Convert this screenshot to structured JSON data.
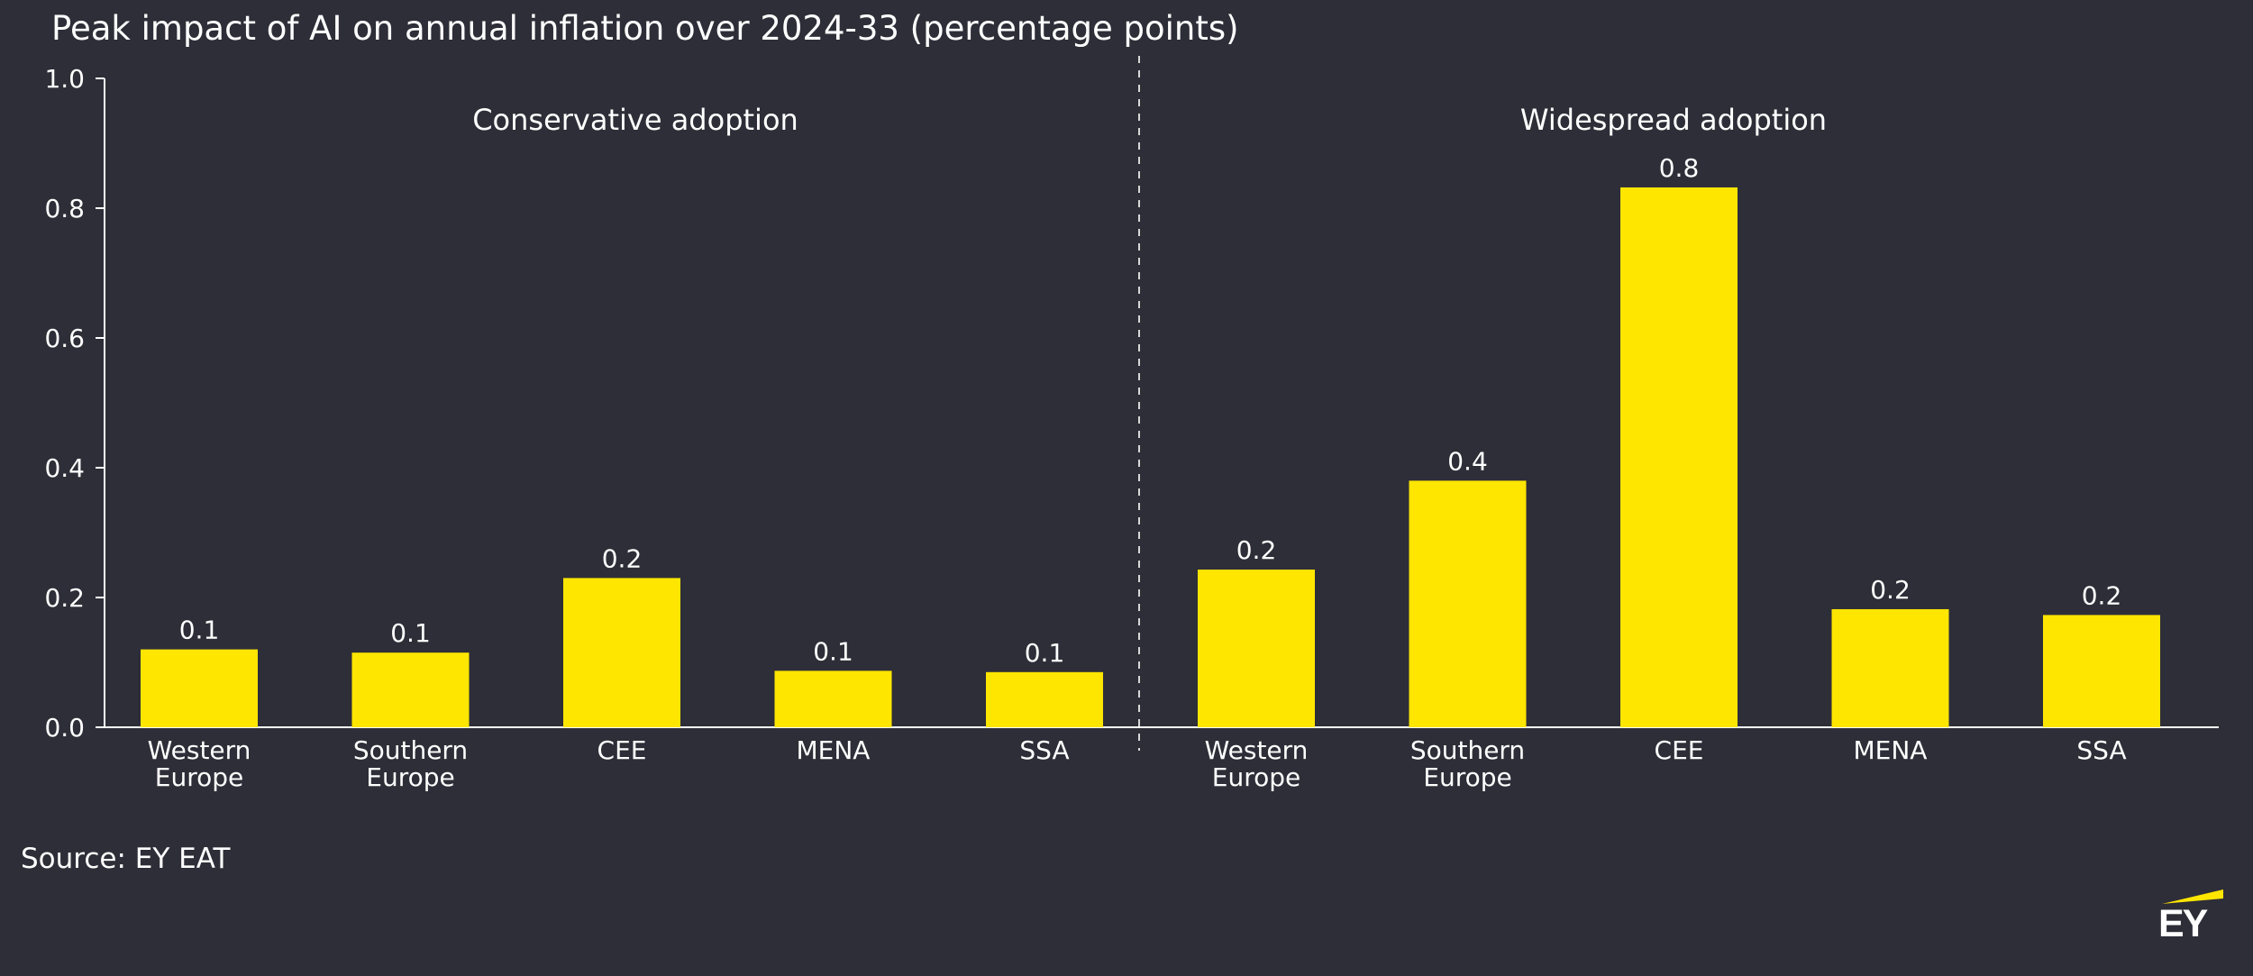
{
  "colors": {
    "background": "#2e2e38",
    "bar": "#ffe600",
    "text": "#ffffff",
    "axis": "#ffffff"
  },
  "source": "Source: EY EAT",
  "logo": {
    "text": "EY",
    "icon": "ey-logo-icon"
  },
  "chart_data": {
    "type": "bar",
    "title": "Peak impact of AI on annual inflation over 2024-33 (percentage points)",
    "xlabel": "",
    "ylabel": "",
    "ylim": [
      0,
      1.0
    ],
    "yticks": [
      "0.0",
      "0.2",
      "0.4",
      "0.6",
      "0.8",
      "1.0"
    ],
    "ytick_values": [
      0,
      0.2,
      0.4,
      0.6,
      0.8,
      1.0
    ],
    "grid": false,
    "groups": [
      {
        "name": "Conservative adoption",
        "categories": [
          [
            "Western",
            "Europe"
          ],
          [
            "Southern",
            "Europe"
          ],
          [
            "CEE"
          ],
          [
            "MENA"
          ],
          [
            "SSA"
          ]
        ],
        "values": [
          0.12,
          0.115,
          0.23,
          0.087,
          0.085
        ],
        "labels": [
          "0.1",
          "0.1",
          "0.2",
          "0.1",
          "0.1"
        ]
      },
      {
        "name": "Widespread adoption",
        "categories": [
          [
            "Western",
            "Europe"
          ],
          [
            "Southern",
            "Europe"
          ],
          [
            "CEE"
          ],
          [
            "MENA"
          ],
          [
            "SSA"
          ]
        ],
        "values": [
          0.243,
          0.38,
          0.832,
          0.182,
          0.173
        ],
        "labels": [
          "0.2",
          "0.4",
          "0.8",
          "0.2",
          "0.2"
        ]
      }
    ]
  }
}
